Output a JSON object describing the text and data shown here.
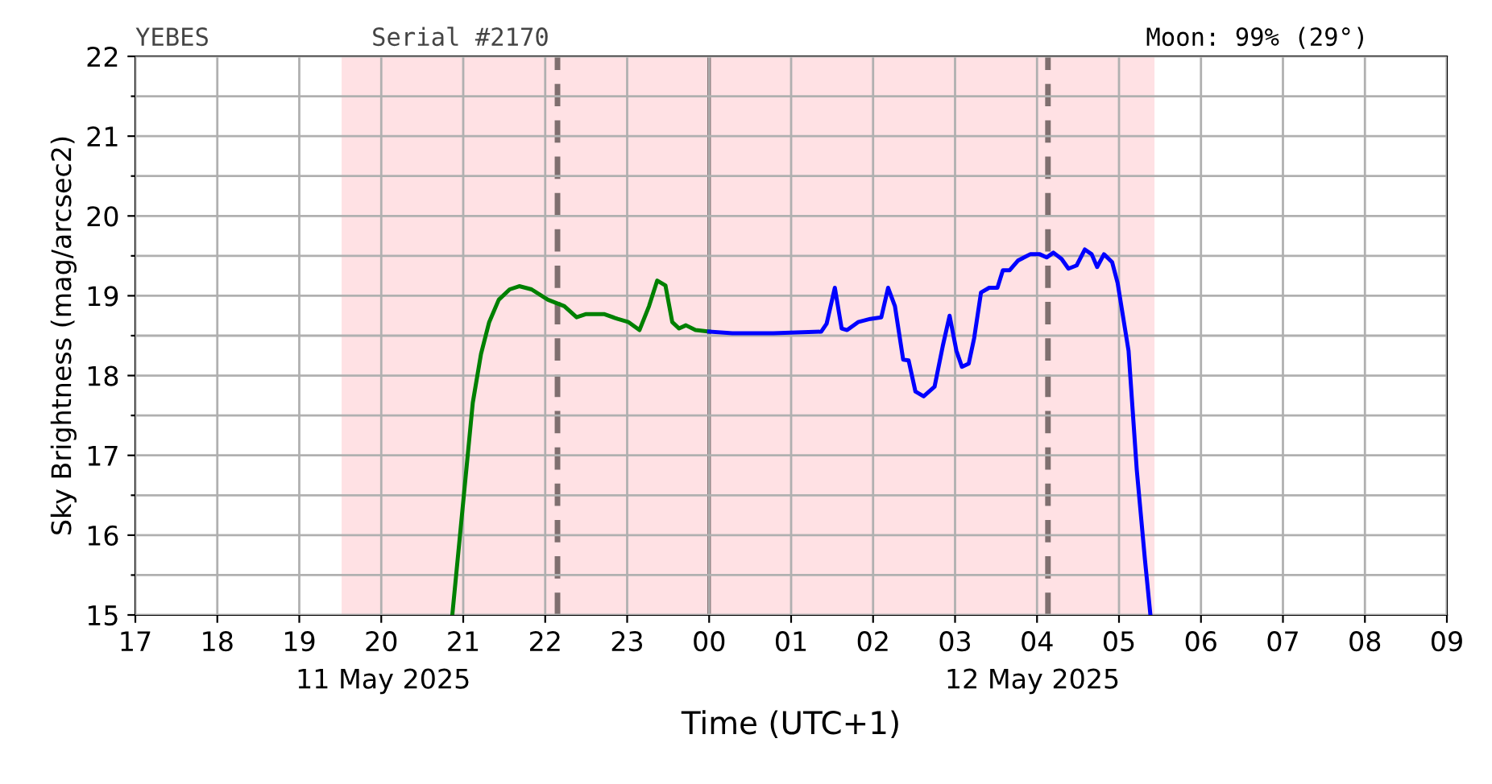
{
  "chart_data": {
    "type": "line",
    "xlabel": "Time (UTC+1)",
    "ylabel": "Sky Brightness (mag/arcsec2)",
    "xlim": [
      "2025-05-11T17:00",
      "2025-05-12T09:00"
    ],
    "ylim": [
      15,
      22
    ],
    "xticks": [
      {
        "value": "2025-05-11T17:00",
        "label": "17"
      },
      {
        "value": "2025-05-11T18:00",
        "label": "18"
      },
      {
        "value": "2025-05-11T19:00",
        "label": "19"
      },
      {
        "value": "2025-05-11T20:00",
        "label": "20"
      },
      {
        "value": "2025-05-11T21:00",
        "label": "21"
      },
      {
        "value": "2025-05-11T22:00",
        "label": "22"
      },
      {
        "value": "2025-05-11T23:00",
        "label": "23"
      },
      {
        "value": "2025-05-12T00:00",
        "label": "00"
      },
      {
        "value": "2025-05-12T01:00",
        "label": "01"
      },
      {
        "value": "2025-05-12T02:00",
        "label": "02"
      },
      {
        "value": "2025-05-12T03:00",
        "label": "03"
      },
      {
        "value": "2025-05-12T04:00",
        "label": "04"
      },
      {
        "value": "2025-05-12T05:00",
        "label": "05"
      },
      {
        "value": "2025-05-12T06:00",
        "label": "06"
      },
      {
        "value": "2025-05-12T07:00",
        "label": "07"
      },
      {
        "value": "2025-05-12T08:00",
        "label": "08"
      },
      {
        "value": "2025-05-12T09:00",
        "label": "09"
      }
    ],
    "yticks": [
      15,
      {
        "value": 15.5,
        "label": null
      },
      16,
      {
        "value": 16.5,
        "label": null
      },
      17,
      {
        "value": 17.5,
        "label": null
      },
      18,
      {
        "value": 18.5,
        "label": null
      },
      19,
      {
        "value": 19.5,
        "label": null
      },
      20,
      {
        "value": 20.5,
        "label": null
      },
      21,
      {
        "value": 21.5,
        "label": null
      },
      22
    ],
    "grid": true,
    "legend": false,
    "marker": "none",
    "line_style": "solid",
    "series": [
      {
        "color": "#008000",
        "x": [
          "2025-05-11T20:52",
          "2025-05-11T21:07",
          "2025-05-11T21:13",
          "2025-05-11T21:19",
          "2025-05-11T21:26",
          "2025-05-11T21:34",
          "2025-05-11T21:41",
          "2025-05-11T21:50",
          "2025-05-11T22:02",
          "2025-05-11T22:14",
          "2025-05-11T22:23",
          "2025-05-11T22:30",
          "2025-05-11T22:43",
          "2025-05-11T22:53",
          "2025-05-11T23:01",
          "2025-05-11T23:09",
          "2025-05-11T23:16",
          "2025-05-11T23:22",
          "2025-05-11T23:28",
          "2025-05-11T23:33",
          "2025-05-11T23:38",
          "2025-05-11T23:43",
          "2025-05-11T23:50",
          "2025-05-12T00:00"
        ],
        "values": [
          15.0,
          17.66,
          18.27,
          18.67,
          18.95,
          19.08,
          19.12,
          19.08,
          18.95,
          18.87,
          18.73,
          18.77,
          18.77,
          18.71,
          18.67,
          18.57,
          18.87,
          19.19,
          19.13,
          18.67,
          18.59,
          18.63,
          18.57,
          18.55
        ]
      },
      {
        "color": "#0000ff",
        "x": [
          "2025-05-12T00:00",
          "2025-05-12T00:17",
          "2025-05-12T00:47",
          "2025-05-12T01:22",
          "2025-05-12T01:26",
          "2025-05-12T01:32",
          "2025-05-12T01:37",
          "2025-05-12T01:41",
          "2025-05-12T01:49",
          "2025-05-12T01:58",
          "2025-05-12T02:06",
          "2025-05-12T02:11",
          "2025-05-12T02:16",
          "2025-05-12T02:22",
          "2025-05-12T02:26",
          "2025-05-12T02:31",
          "2025-05-12T02:37",
          "2025-05-12T02:45",
          "2025-05-12T02:51",
          "2025-05-12T02:56",
          "2025-05-12T03:01",
          "2025-05-12T03:05",
          "2025-05-12T03:10",
          "2025-05-12T03:14",
          "2025-05-12T03:19",
          "2025-05-12T03:25",
          "2025-05-12T03:31",
          "2025-05-12T03:35",
          "2025-05-12T03:40",
          "2025-05-12T03:46",
          "2025-05-12T03:55",
          "2025-05-12T04:02",
          "2025-05-12T04:07",
          "2025-05-12T04:12",
          "2025-05-12T04:18",
          "2025-05-12T04:23",
          "2025-05-12T04:29",
          "2025-05-12T04:35",
          "2025-05-12T04:40",
          "2025-05-12T04:44",
          "2025-05-12T04:49",
          "2025-05-12T04:55",
          "2025-05-12T04:59",
          "2025-05-12T05:07",
          "2025-05-12T05:13",
          "2025-05-12T05:19",
          "2025-05-12T05:23"
        ],
        "values": [
          18.55,
          18.53,
          18.53,
          18.55,
          18.65,
          19.1,
          18.59,
          18.57,
          18.67,
          18.71,
          18.73,
          19.1,
          18.87,
          18.2,
          18.19,
          17.8,
          17.74,
          17.86,
          18.37,
          18.75,
          18.31,
          18.11,
          18.15,
          18.47,
          19.04,
          19.1,
          19.1,
          19.32,
          19.32,
          19.44,
          19.52,
          19.52,
          19.48,
          19.54,
          19.46,
          19.34,
          19.38,
          19.58,
          19.52,
          19.36,
          19.52,
          19.42,
          19.16,
          18.31,
          16.82,
          15.69,
          15.0
        ]
      }
    ],
    "bands": [
      {
        "axis": "x",
        "from": "2025-05-11T19:31",
        "to": "2025-05-12T05:26",
        "color": "#ffe1e4"
      }
    ],
    "ref_lines": [
      {
        "axis": "x",
        "value": "2025-05-11T22:09",
        "color": "#7f6f6f",
        "line_style": "dashed"
      },
      {
        "axis": "x",
        "value": "2025-05-12T04:08",
        "color": "#7f6f6f",
        "line_style": "dashed"
      },
      {
        "axis": "x",
        "value": "2025-05-12T00:00",
        "color": "#5f4f4f",
        "line_style": "solid"
      }
    ],
    "annotations": [
      "YEBES",
      "Serial #2170",
      "Moon: 99% (29°)",
      "11 May 2025",
      "12 May 2025"
    ]
  }
}
